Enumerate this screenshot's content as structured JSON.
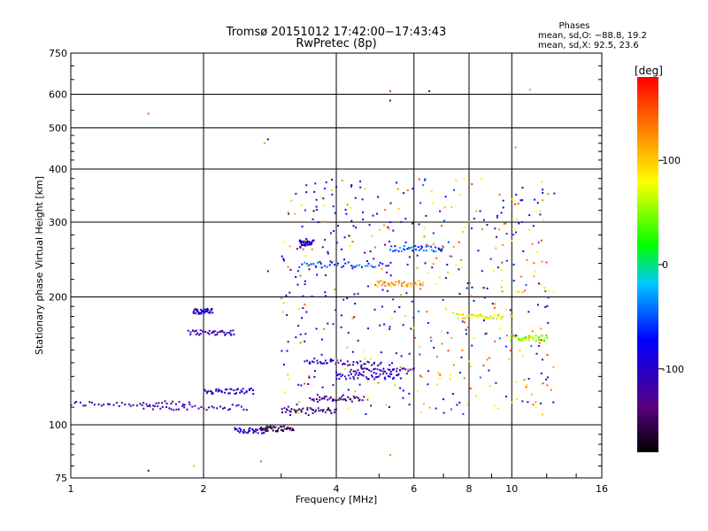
{
  "chart_data": {
    "type": "scatter",
    "title": "Tromsø 20151012 17:42:00−17:43:43",
    "subtitle": "RwPretec (8p)",
    "xlabel": "Frequency [MHz]",
    "ylabel": "Stationary phase Virtual Height [km]",
    "x_scale": "log",
    "y_scale": "log",
    "xlim": [
      1,
      16
    ],
    "ylim": [
      75,
      750
    ],
    "x_ticks": [
      1,
      2,
      4,
      6,
      8,
      10,
      16
    ],
    "y_ticks": [
      75,
      100,
      200,
      300,
      400,
      500,
      600,
      750
    ],
    "grid": true,
    "legend": {
      "title": "Phases",
      "lines": [
        "mean, sd,O:  −88.8, 19.2",
        "mean, sd,X:  92.5, 23.6"
      ],
      "placement": "top-right"
    },
    "colorbar": {
      "label": "[deg]",
      "range": [
        -180,
        180
      ],
      "ticks": [
        100,
        0,
        -100
      ],
      "colormap": "rainbow (black → purple → blue → cyan → green → yellow → orange → red)"
    },
    "traces": [
      {
        "x_range": [
          1.0,
          1.85
        ],
        "height": 112,
        "phase": -110
      },
      {
        "x_range": [
          1.45,
          2.5
        ],
        "height": 110,
        "phase": -115
      },
      {
        "x_range": [
          1.85,
          2.35
        ],
        "height": 165,
        "phase": -110
      },
      {
        "x_range": [
          1.9,
          2.1
        ],
        "height": 185,
        "phase": -100
      },
      {
        "x_range": [
          2.0,
          2.6
        ],
        "height": 120,
        "phase": -100
      },
      {
        "x_range": [
          2.35,
          2.8
        ],
        "height": 97,
        "phase": -110
      },
      {
        "x_range": [
          2.7,
          3.2
        ],
        "height": 98,
        "phase": -150
      },
      {
        "x_range": [
          3.0,
          4.0
        ],
        "height": 108,
        "phase": -140
      },
      {
        "x_range": [
          3.5,
          4.6
        ],
        "height": 115,
        "phase": -130
      },
      {
        "x_range": [
          3.4,
          5.0
        ],
        "height": 140,
        "phase": -110
      },
      {
        "x_range": [
          4.0,
          5.6
        ],
        "height": 130,
        "phase": -100
      },
      {
        "x_range": [
          4.3,
          6.0
        ],
        "height": 134,
        "phase": -110
      },
      {
        "x_range": [
          3.3,
          5.3
        ],
        "height": 238,
        "phase": -60
      },
      {
        "x_range": [
          5.3,
          7.0
        ],
        "height": 260,
        "phase": -50
      },
      {
        "x_range": [
          3.3,
          3.55
        ],
        "height": 268,
        "phase": -100
      },
      {
        "x_range": [
          4.9,
          6.3
        ],
        "height": 215,
        "phase": 120
      },
      {
        "x_range": [
          7.5,
          9.5
        ],
        "height": 180,
        "phase": 80
      },
      {
        "x_range": [
          10.0,
          12.0
        ],
        "height": 160,
        "phase": 50
      }
    ]
  }
}
